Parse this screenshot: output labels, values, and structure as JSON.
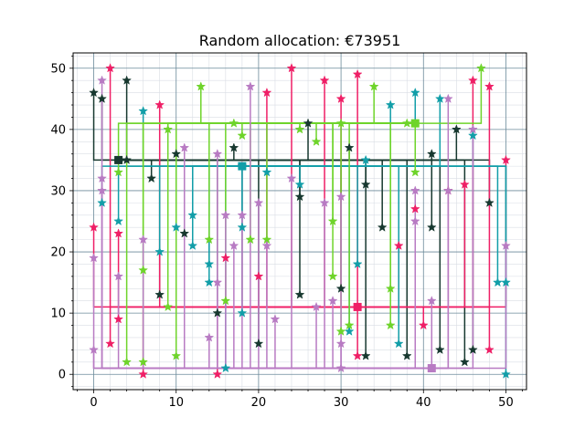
{
  "chart_data": {
    "type": "scatter",
    "title": "Random allocation: €73951",
    "xlabel": "",
    "ylabel": "",
    "xlim": [
      -2.5,
      52.5
    ],
    "ylim": [
      -2.5,
      52.5
    ],
    "xticks": [
      0,
      10,
      20,
      30,
      40,
      50
    ],
    "yticks": [
      0,
      10,
      20,
      30,
      40,
      50
    ],
    "grid": true,
    "colors": {
      "dark": "#17382f",
      "pink": "#ef1f66",
      "teal": "#129ea8",
      "lime": "#6ed42a",
      "lavender": "#b87bc3"
    },
    "series": [
      {
        "color_key": "dark",
        "facility": [
          3,
          35
        ],
        "points": [
          [
            0,
            46
          ],
          [
            1,
            45
          ],
          [
            4,
            48
          ],
          [
            4,
            35
          ],
          [
            7,
            32
          ],
          [
            8,
            13
          ],
          [
            10,
            36
          ],
          [
            11,
            23
          ],
          [
            15,
            10
          ],
          [
            17,
            37
          ],
          [
            20,
            5
          ],
          [
            25,
            29
          ],
          [
            25,
            13
          ],
          [
            26,
            41
          ],
          [
            30,
            14
          ],
          [
            31,
            37
          ],
          [
            33,
            31
          ],
          [
            33,
            3
          ],
          [
            35,
            24
          ],
          [
            38,
            3
          ],
          [
            41,
            36
          ],
          [
            41,
            24
          ],
          [
            42,
            4
          ],
          [
            44,
            40
          ],
          [
            45,
            2
          ],
          [
            46,
            4
          ],
          [
            48,
            28
          ]
        ]
      },
      {
        "color_key": "pink",
        "facility": [
          32,
          11
        ],
        "points": [
          [
            0,
            24
          ],
          [
            2,
            50
          ],
          [
            2,
            5
          ],
          [
            3,
            23
          ],
          [
            3,
            9
          ],
          [
            6,
            0
          ],
          [
            8,
            44
          ],
          [
            15,
            0
          ],
          [
            16,
            19
          ],
          [
            18,
            34
          ],
          [
            20,
            16
          ],
          [
            21,
            46
          ],
          [
            24,
            50
          ],
          [
            28,
            48
          ],
          [
            30,
            45
          ],
          [
            32,
            49
          ],
          [
            32,
            3
          ],
          [
            37,
            21
          ],
          [
            39,
            27
          ],
          [
            40,
            8
          ],
          [
            43,
            30
          ],
          [
            45,
            31
          ],
          [
            46,
            48
          ],
          [
            48,
            47
          ],
          [
            48,
            4
          ],
          [
            50,
            35
          ]
        ]
      },
      {
        "color_key": "teal",
        "facility": [
          18,
          34
        ],
        "points": [
          [
            1,
            28
          ],
          [
            3,
            25
          ],
          [
            6,
            43
          ],
          [
            8,
            20
          ],
          [
            10,
            24
          ],
          [
            12,
            26
          ],
          [
            12,
            21
          ],
          [
            14,
            18
          ],
          [
            14,
            15
          ],
          [
            16,
            1
          ],
          [
            18,
            10
          ],
          [
            18,
            24
          ],
          [
            21,
            33
          ],
          [
            25,
            31
          ],
          [
            31,
            7
          ],
          [
            32,
            18
          ],
          [
            33,
            35
          ],
          [
            36,
            44
          ],
          [
            37,
            5
          ],
          [
            39,
            46
          ],
          [
            42,
            45
          ],
          [
            46,
            39
          ],
          [
            49,
            15
          ],
          [
            50,
            15
          ],
          [
            50,
            0
          ]
        ]
      },
      {
        "color_key": "lime",
        "facility": [
          39,
          41
        ],
        "points": [
          [
            3,
            33
          ],
          [
            4,
            2
          ],
          [
            6,
            17
          ],
          [
            6,
            2
          ],
          [
            9,
            40
          ],
          [
            9,
            11
          ],
          [
            10,
            3
          ],
          [
            13,
            47
          ],
          [
            14,
            22
          ],
          [
            16,
            12
          ],
          [
            17,
            41
          ],
          [
            18,
            39
          ],
          [
            19,
            22
          ],
          [
            21,
            22
          ],
          [
            25,
            40
          ],
          [
            27,
            38
          ],
          [
            29,
            25
          ],
          [
            29,
            16
          ],
          [
            30,
            41
          ],
          [
            30,
            7
          ],
          [
            31,
            8
          ],
          [
            34,
            47
          ],
          [
            36,
            14
          ],
          [
            36,
            8
          ],
          [
            38,
            41
          ],
          [
            39,
            33
          ],
          [
            47,
            50
          ]
        ]
      },
      {
        "color_key": "lavender",
        "facility": [
          41,
          1
        ],
        "points": [
          [
            0,
            19
          ],
          [
            0,
            4
          ],
          [
            1,
            48
          ],
          [
            1,
            32
          ],
          [
            1,
            30
          ],
          [
            3,
            16
          ],
          [
            6,
            22
          ],
          [
            11,
            37
          ],
          [
            14,
            6
          ],
          [
            15,
            15
          ],
          [
            15,
            36
          ],
          [
            16,
            26
          ],
          [
            17,
            21
          ],
          [
            18,
            26
          ],
          [
            19,
            47
          ],
          [
            20,
            28
          ],
          [
            21,
            21
          ],
          [
            22,
            9
          ],
          [
            24,
            32
          ],
          [
            27,
            11
          ],
          [
            28,
            28
          ],
          [
            29,
            12
          ],
          [
            30,
            29
          ],
          [
            30,
            5
          ],
          [
            30,
            1
          ],
          [
            39,
            25
          ],
          [
            39,
            30
          ],
          [
            41,
            12
          ],
          [
            43,
            45
          ],
          [
            43,
            30
          ],
          [
            46,
            40
          ],
          [
            50,
            21
          ]
        ]
      }
    ]
  }
}
